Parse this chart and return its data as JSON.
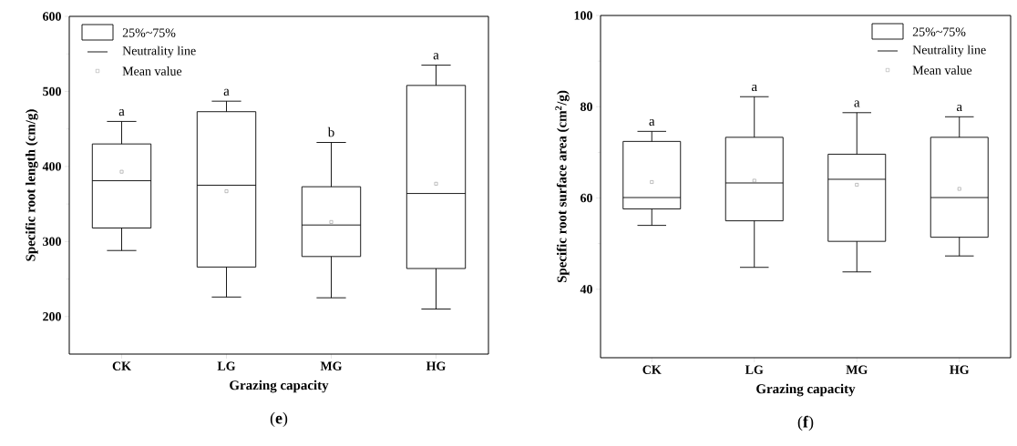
{
  "chart_data": [
    {
      "type": "box",
      "xlabel": "Grazing capacity",
      "ylabel": "Specific root length (cm/g)",
      "categories": [
        "CK",
        "LG",
        "MG",
        "HG"
      ],
      "ylim": [
        150,
        600
      ],
      "yticks": [
        200,
        300,
        400,
        500,
        600
      ],
      "legend": "top left",
      "series": [
        {
          "name": "25%~75%",
          "color": "#000000",
          "boxes": [
            {
              "low": 288,
              "q1": 318,
              "median": 381,
              "q3": 430,
              "high": 460
            },
            {
              "low": 226,
              "q1": 266,
              "median": 375,
              "q3": 473,
              "high": 487
            },
            {
              "low": 225,
              "q1": 280,
              "median": 322,
              "q3": 373,
              "high": 432
            },
            {
              "low": 210,
              "q1": 264,
              "median": 364,
              "q3": 508,
              "high": 535
            }
          ]
        },
        {
          "name": "Mean value",
          "type": "scatter",
          "marker": "square",
          "color": "#808080",
          "x": [
            "CK",
            "LG",
            "MG",
            "HG"
          ],
          "values": [
            393,
            367,
            326,
            377
          ]
        }
      ],
      "annotations": [
        "Neutrality line",
        "a",
        "a",
        "b",
        "a",
        "(**e**)"
      ]
    },
    {
      "type": "box",
      "xlabel": "Grazing capacity",
      "ylabel": "Specific root surface area (cm$^{2}$/g)",
      "categories": [
        "CK",
        "LG",
        "MG",
        "HG"
      ],
      "ylim": [
        25,
        100
      ],
      "yticks": [
        40,
        60,
        80,
        100
      ],
      "legend": "top right",
      "series": [
        {
          "name": "25%~75%",
          "color": "#000000",
          "boxes": [
            {
              "low": 54.0,
              "q1": 57.6,
              "median": 60.1,
              "q3": 72.4,
              "high": 74.6
            },
            {
              "low": 44.8,
              "q1": 55.0,
              "median": 63.3,
              "q3": 73.3,
              "high": 82.2
            },
            {
              "low": 43.8,
              "q1": 50.5,
              "median": 64.1,
              "q3": 69.6,
              "high": 78.7
            },
            {
              "low": 47.3,
              "q1": 51.4,
              "median": 60.1,
              "q3": 73.3,
              "high": 77.8
            }
          ]
        },
        {
          "name": "Mean value",
          "type": "scatter",
          "marker": "square",
          "color": "#808080",
          "x": [
            "CK",
            "LG",
            "MG",
            "HG"
          ],
          "values": [
            63.5,
            63.8,
            62.9,
            62.0
          ]
        }
      ],
      "annotations": [
        "Neutrality line",
        "a",
        "a",
        "a",
        "a",
        "(**f**)"
      ]
    }
  ]
}
